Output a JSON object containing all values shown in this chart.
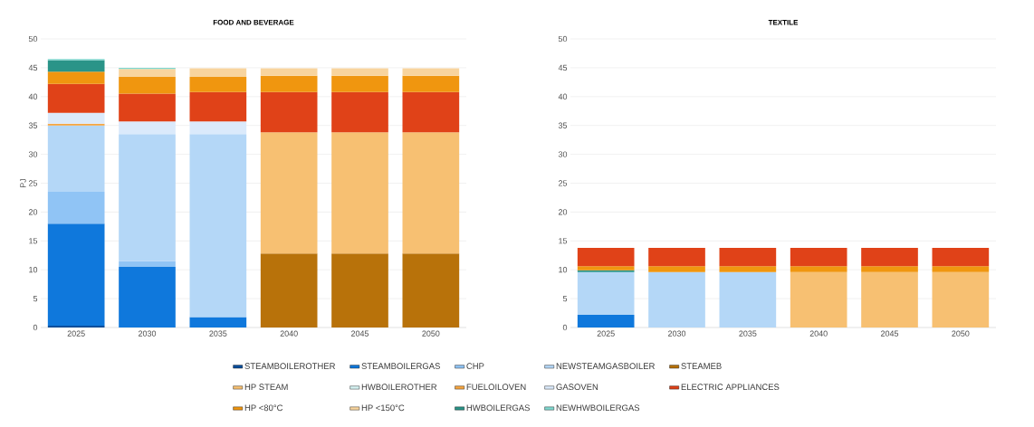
{
  "chart_data": [
    {
      "type": "bar",
      "stacked": true,
      "title": "FOOD AND BEVERAGE",
      "ylabel": "PJ",
      "categories": [
        "2025",
        "2030",
        "2035",
        "2040",
        "2045",
        "2050"
      ],
      "ylim": [
        0,
        50
      ],
      "yticks": [
        0,
        5,
        10,
        15,
        20,
        25,
        30,
        35,
        40,
        45,
        50
      ],
      "grid": "y",
      "legend": "bottom",
      "series": [
        {
          "name": "STEAMBOILEROTHER",
          "color": "#0b4f9c",
          "values": [
            0.3,
            null,
            null,
            null,
            null,
            null
          ]
        },
        {
          "name": "STEAMBOILERGAS",
          "color": "#0f78dc",
          "values": [
            17.7,
            10.5,
            1.8,
            null,
            null,
            null
          ]
        },
        {
          "name": "CHP",
          "color": "#90c4f5",
          "values": [
            5.5,
            1,
            null,
            null,
            null,
            null
          ]
        },
        {
          "name": "NEWSTEAMGASBOILER",
          "color": "#b4d7f7",
          "values": [
            11.5,
            22,
            31.7,
            null,
            null,
            null
          ]
        },
        {
          "name": "STEAMEB",
          "color": "#b8720a",
          "values": [
            null,
            null,
            null,
            12.8,
            12.8,
            12.8
          ]
        },
        {
          "name": "HP STEAM",
          "color": "#f7c072",
          "values": [
            null,
            null,
            null,
            21,
            21,
            21
          ]
        },
        {
          "name": "HWBOILEROTHER",
          "color": "#d5f2f2",
          "values": [
            null,
            null,
            null,
            null,
            null,
            null
          ]
        },
        {
          "name": "FUELOILOVEN",
          "color": "#f5a540",
          "values": [
            0.3,
            null,
            null,
            null,
            null,
            null
          ]
        },
        {
          "name": "GASOVEN",
          "color": "#dbeafb",
          "values": [
            1.9,
            2.2,
            2.2,
            null,
            null,
            null
          ]
        },
        {
          "name": "ELECTRIC APPLIANCES",
          "color": "#e04218",
          "values": [
            5,
            4.8,
            5.1,
            7,
            7,
            7
          ]
        },
        {
          "name": "HP <80°C",
          "color": "#f0960f",
          "values": [
            2.1,
            2.9,
            2.6,
            2.8,
            2.8,
            2.8
          ]
        },
        {
          "name": "HP <150°C",
          "color": "#f8d49e",
          "values": [
            null,
            1.4,
            1.5,
            1.3,
            1.3,
            1.3
          ]
        },
        {
          "name": "HWBOILERGAS",
          "color": "#2a9488",
          "values": [
            2,
            null,
            null,
            null,
            null,
            null
          ]
        },
        {
          "name": "NEWHWBOILERGAS",
          "color": "#7fd8cf",
          "values": [
            0.2,
            0.2,
            null,
            null,
            null,
            null
          ]
        }
      ]
    },
    {
      "type": "bar",
      "stacked": true,
      "title": "TEXTILE",
      "categories": [
        "2025",
        "2030",
        "2035",
        "2040",
        "2045",
        "2050"
      ],
      "ylim": [
        0,
        50
      ],
      "yticks": [
        0,
        5,
        10,
        15,
        20,
        25,
        30,
        35,
        40,
        45,
        50
      ],
      "grid": "y",
      "series": [
        {
          "color": "#0f78dc",
          "values": [
            2.2,
            null,
            null,
            null,
            null,
            null
          ]
        },
        {
          "color": "#b4d7f7",
          "values": [
            7.4,
            9.6,
            9.6,
            null,
            null,
            null
          ]
        },
        {
          "color": "#f7c072",
          "values": [
            null,
            null,
            null,
            9.6,
            9.6,
            9.6
          ]
        },
        {
          "color": "#2a9488",
          "values": [
            0.3,
            null,
            null,
            null,
            null,
            null
          ]
        },
        {
          "color": "#f0960f",
          "values": [
            0.7,
            1,
            1,
            1,
            1,
            1
          ]
        },
        {
          "color": "#e04218",
          "values": [
            3.2,
            3.2,
            3.2,
            3.2,
            3.2,
            3.2
          ]
        }
      ]
    }
  ]
}
